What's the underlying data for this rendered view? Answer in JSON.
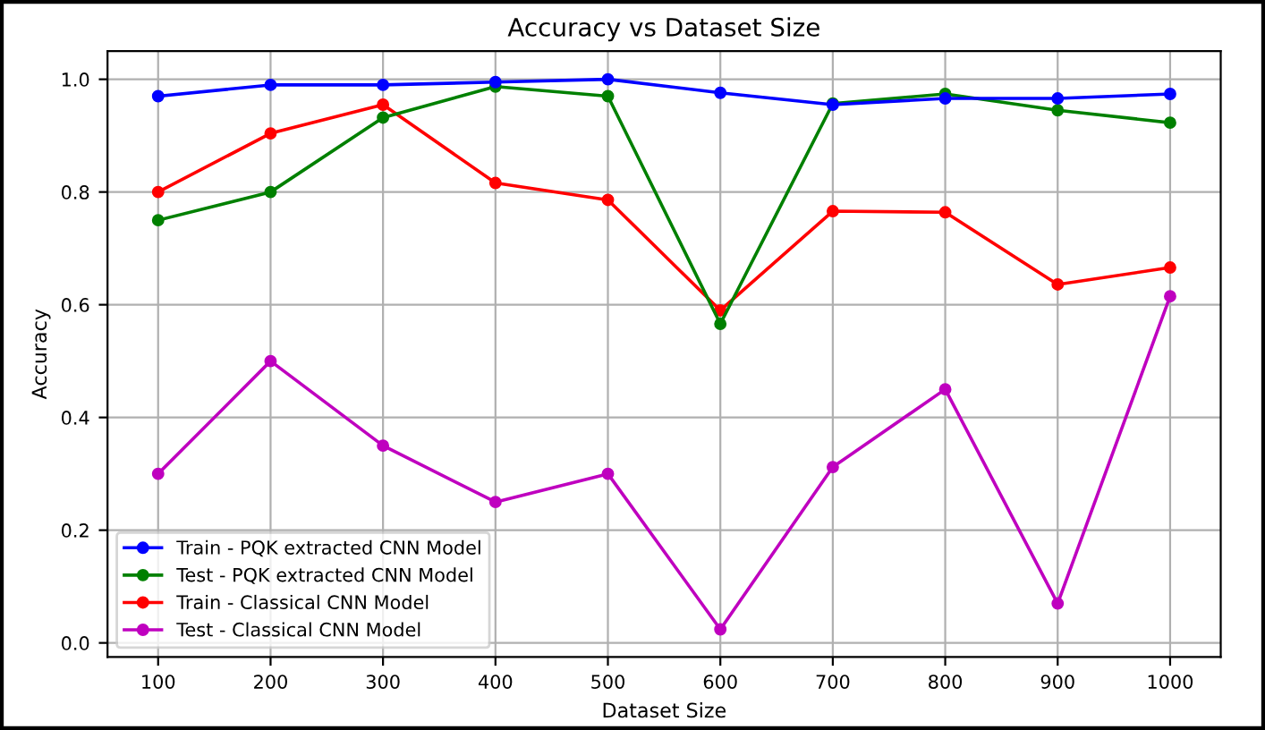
{
  "chart_data": {
    "type": "line",
    "title": "Accuracy vs Dataset Size",
    "xlabel": "Dataset Size",
    "ylabel": "Accuracy",
    "x": [
      100,
      200,
      300,
      400,
      500,
      600,
      700,
      800,
      900,
      1000
    ],
    "series": [
      {
        "name": "Train - PQK extracted CNN Model",
        "color": "#0000ff",
        "values": [
          0.97,
          0.99,
          0.99,
          0.995,
          1.0,
          0.976,
          0.955,
          0.966,
          0.966,
          0.974
        ]
      },
      {
        "name": "Test - PQK extracted CNN Model",
        "color": "#008000",
        "values": [
          0.75,
          0.8,
          0.932,
          0.987,
          0.97,
          0.566,
          0.957,
          0.974,
          0.945,
          0.923
        ]
      },
      {
        "name": "Train - Classical CNN Model",
        "color": "#ff0000",
        "values": [
          0.8,
          0.904,
          0.955,
          0.816,
          0.786,
          0.59,
          0.766,
          0.764,
          0.636,
          0.666
        ]
      },
      {
        "name": "Test - Classical CNN Model",
        "color": "#bf00bf",
        "values": [
          0.3,
          0.5,
          0.35,
          0.25,
          0.3,
          0.024,
          0.312,
          0.45,
          0.07,
          0.615
        ]
      }
    ],
    "xlim": [
      55,
      1045
    ],
    "xticks": [
      100,
      200,
      300,
      400,
      500,
      600,
      700,
      800,
      900,
      1000
    ],
    "ylim": [
      -0.025,
      1.05
    ],
    "yticks": [
      {
        "value": 0,
        "label": "0.0"
      },
      0.2,
      0.4,
      0.6,
      0.8,
      {
        "value": 1,
        "label": "1.0"
      }
    ],
    "grid": true,
    "legend": "bottom left",
    "marker": "circle",
    "line_style": "solid"
  }
}
